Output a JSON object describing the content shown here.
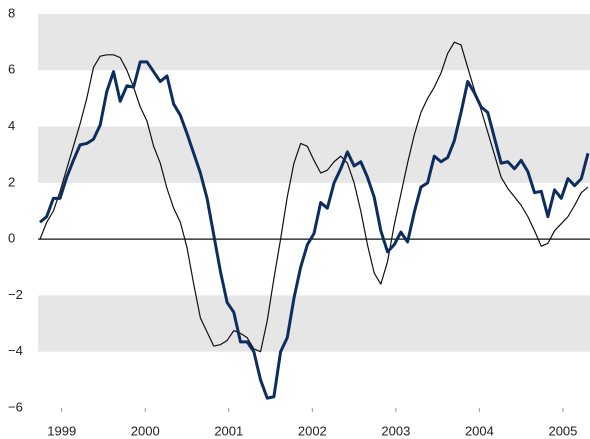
{
  "chart_data": {
    "type": "line",
    "x": [
      1998.74,
      1998.82,
      1998.9,
      1998.98,
      1999.06,
      1999.14,
      1999.22,
      1999.3,
      1999.38,
      1999.46,
      1999.54,
      1999.62,
      1999.7,
      1999.78,
      1999.86,
      1999.94,
      2000.02,
      2000.1,
      2000.18,
      2000.26,
      2000.34,
      2000.42,
      2000.5,
      2000.58,
      2000.66,
      2000.74,
      2000.82,
      2000.9,
      2000.98,
      2001.06,
      2001.14,
      2001.22,
      2001.3,
      2001.38,
      2001.46,
      2001.54,
      2001.62,
      2001.7,
      2001.78,
      2001.86,
      2001.94,
      2002.02,
      2002.1,
      2002.18,
      2002.26,
      2002.34,
      2002.42,
      2002.5,
      2002.58,
      2002.66,
      2002.74,
      2002.82,
      2002.9,
      2002.98,
      2003.06,
      2003.14,
      2003.22,
      2003.3,
      2003.38,
      2003.46,
      2003.54,
      2003.62,
      2003.7,
      2003.78,
      2003.86,
      2003.94,
      2004.02,
      2004.1,
      2004.18,
      2004.26,
      2004.34,
      2004.42,
      2004.5,
      2004.58,
      2004.66,
      2004.74,
      2004.82,
      2004.9,
      2004.98,
      2005.06,
      2005.14,
      2005.22,
      2005.3
    ],
    "series": [
      {
        "color": "#0d2d5e",
        "width": 3,
        "values": [
          0.6,
          0.8,
          1.45,
          1.45,
          2.2,
          2.8,
          3.35,
          3.4,
          3.55,
          4.05,
          5.25,
          5.95,
          4.9,
          5.45,
          5.4,
          6.3,
          6.3,
          5.95,
          5.6,
          5.8,
          4.8,
          4.4,
          3.75,
          3.05,
          2.35,
          1.45,
          0.15,
          -1.15,
          -2.25,
          -2.6,
          -3.65,
          -3.65,
          -4.0,
          -5.0,
          -5.65,
          -5.6,
          -4.0,
          -3.5,
          -2.1,
          -1.0,
          -0.2,
          0.2,
          1.3,
          1.1,
          2.0,
          2.5,
          3.1,
          2.6,
          2.75,
          2.2,
          1.5,
          0.3,
          -0.45,
          -0.2,
          0.25,
          -0.1,
          0.95,
          1.85,
          2.0,
          2.95,
          2.75,
          2.9,
          3.5,
          4.5,
          5.6,
          5.2,
          4.7,
          4.5,
          3.6,
          2.7,
          2.75,
          2.5,
          2.8,
          2.4,
          1.65,
          1.7,
          0.8,
          1.75,
          1.45,
          2.15,
          1.9,
          2.15,
          3.05
        ]
      },
      {
        "color": "#111111",
        "width": 1.2,
        "values": [
          0,
          0.6,
          1.0,
          1.7,
          2.5,
          3.3,
          4.1,
          5.0,
          6.1,
          6.5,
          6.55,
          6.55,
          6.45,
          6.0,
          5.4,
          4.7,
          4.2,
          3.3,
          2.7,
          1.8,
          1.1,
          0.6,
          -0.3,
          -1.6,
          -2.8,
          -3.3,
          -3.8,
          -3.75,
          -3.6,
          -3.25,
          -3.35,
          -3.5,
          -3.9,
          -4.0,
          -2.9,
          -1.4,
          0.0,
          1.5,
          2.7,
          3.4,
          3.3,
          2.8,
          2.35,
          2.45,
          2.75,
          2.95,
          2.7,
          2.0,
          1.0,
          -0.2,
          -1.2,
          -1.6,
          -0.8,
          0.5,
          1.6,
          2.7,
          3.7,
          4.5,
          5.0,
          5.4,
          5.9,
          6.6,
          7.0,
          6.9,
          6.1,
          5.3,
          4.6,
          3.8,
          3.0,
          2.2,
          1.8,
          1.5,
          1.2,
          0.8,
          0.3,
          -0.25,
          -0.15,
          0.3,
          0.55,
          0.8,
          1.2,
          1.65,
          1.85
        ]
      }
    ],
    "xlim": [
      1998.74,
      2005.3
    ],
    "xticks": [
      1999,
      2000,
      2001,
      2002,
      2003,
      2004,
      2005
    ],
    "ylim": [
      -6,
      8
    ],
    "yticks": [
      {
        "value": -6,
        "label": "−6"
      },
      {
        "value": -4,
        "label": "−4"
      },
      {
        "value": -2,
        "label": "−2"
      },
      0,
      2,
      4,
      6,
      8
    ],
    "band_color": "#e6e6e6",
    "zero_line": true
  }
}
